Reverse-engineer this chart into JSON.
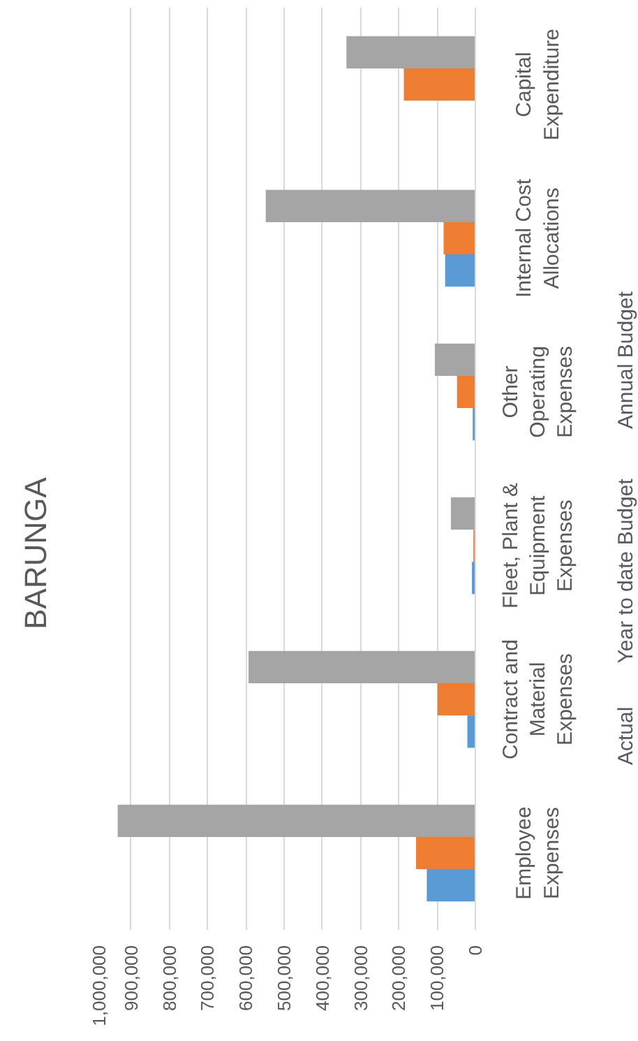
{
  "chart_data": {
    "type": "bar",
    "orientation": "horizontal",
    "title": "BARUNGA",
    "categories": [
      "Capital Expenditure",
      "Internal Cost Allocations",
      "Other Operating Expenses",
      "Fleet, Plant & Equipment Expenses",
      "Contract and Material Expenses",
      "Employee Expenses"
    ],
    "series": [
      {
        "name": "Actual",
        "color": "#5b9bd5",
        "values": [
          0,
          79000,
          7000,
          9000,
          21000,
          127000
        ]
      },
      {
        "name": "Year to date Budget",
        "color": "#ed7d31",
        "values": [
          187000,
          83000,
          48000,
          5000,
          99000,
          155000
        ]
      },
      {
        "name": "Annual Budget",
        "color": "#a5a5a5",
        "values": [
          337000,
          548000,
          106000,
          64000,
          593000,
          935000
        ]
      }
    ],
    "xlim": [
      1000000,
      0
    ],
    "xticks": [
      {
        "value": 0,
        "label": "0"
      },
      {
        "value": 100000,
        "label": "100,000"
      },
      {
        "value": 200000,
        "label": "200,000"
      },
      {
        "value": 300000,
        "label": "300,000"
      },
      {
        "value": 400000,
        "label": "400,000"
      },
      {
        "value": 500000,
        "label": "500,000"
      },
      {
        "value": 600000,
        "label": "600,000"
      },
      {
        "value": 700000,
        "label": "700,000"
      },
      {
        "value": 800000,
        "label": "800,000"
      },
      {
        "value": 900000,
        "label": "900,000"
      },
      {
        "value": 1000000,
        "label": "1,000,000"
      }
    ],
    "grid": "x",
    "legend": "right"
  }
}
